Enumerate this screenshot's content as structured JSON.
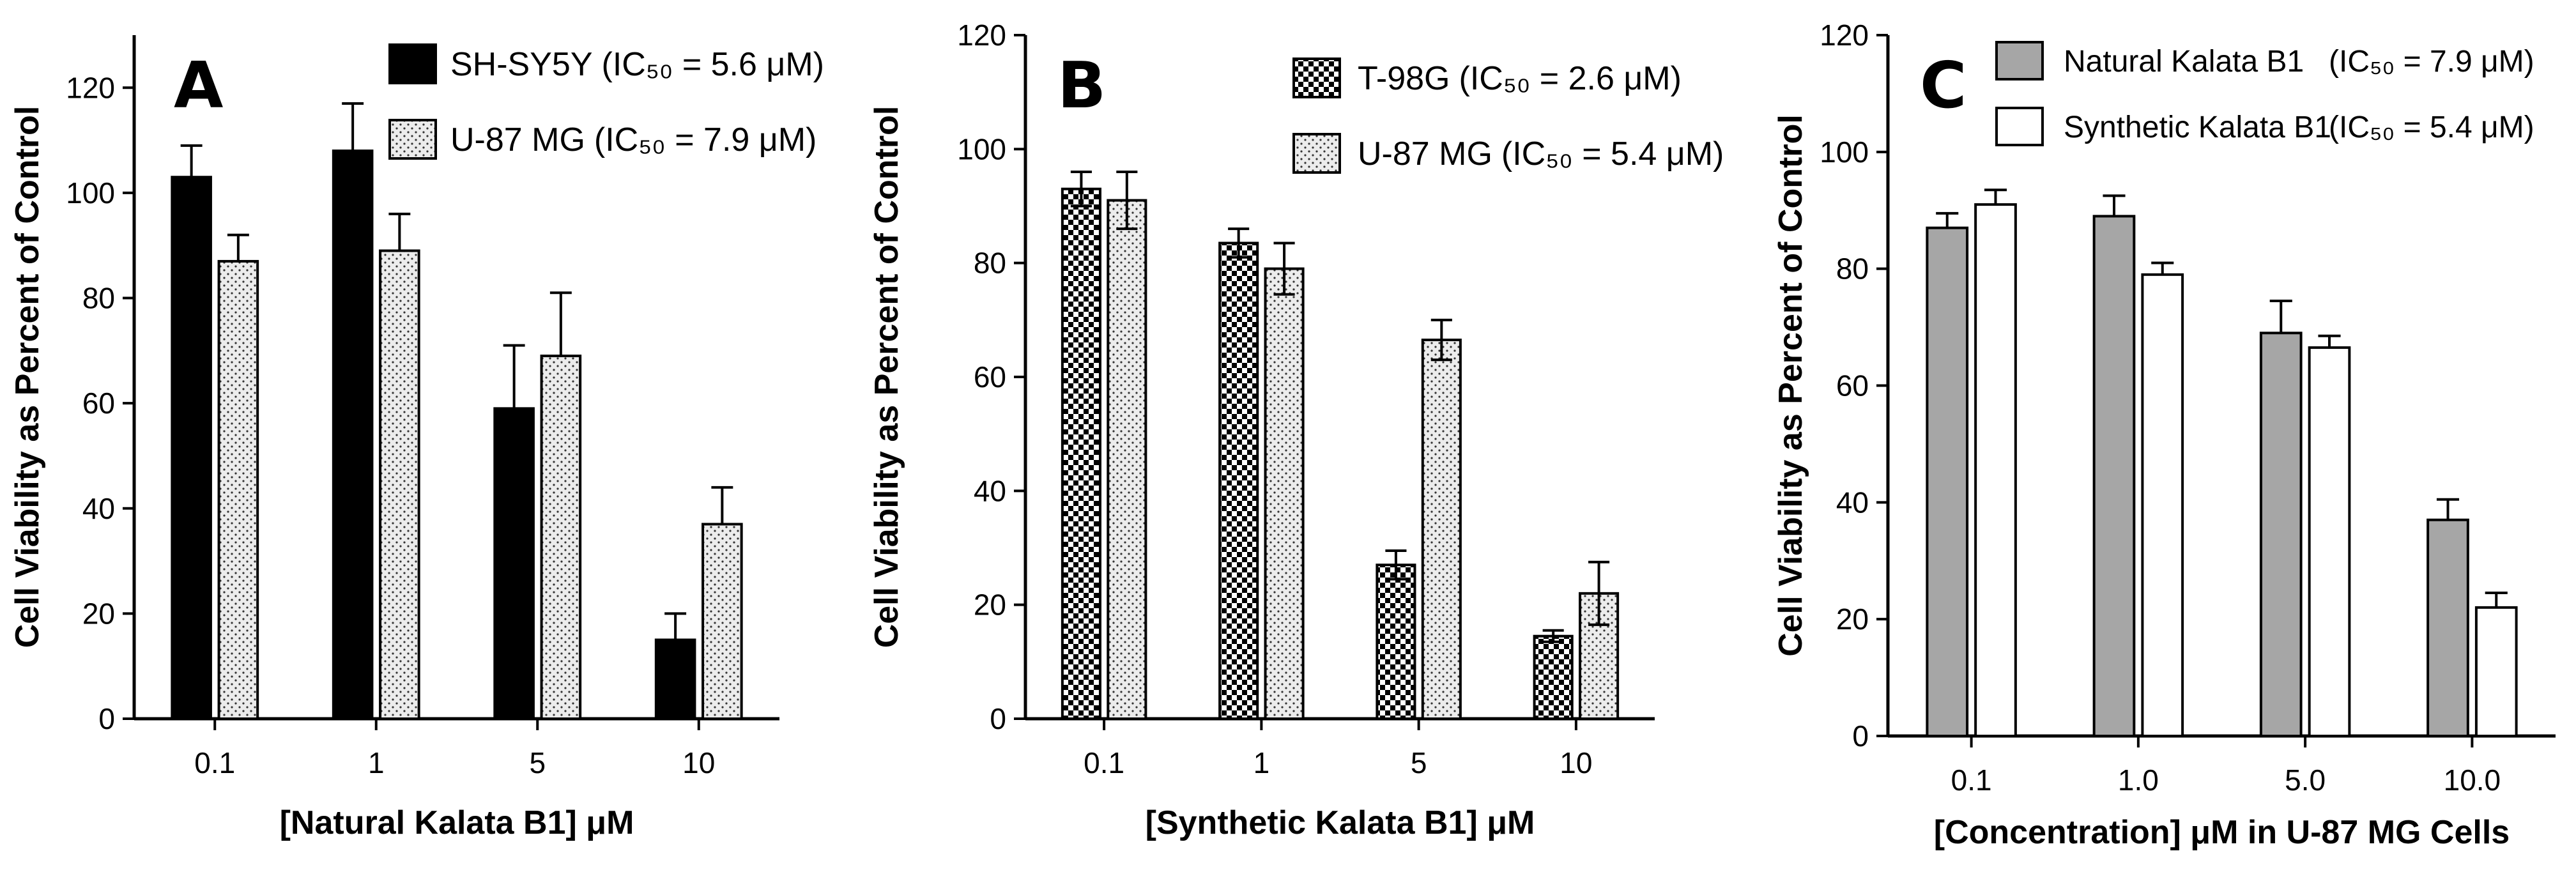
{
  "colors": {
    "black_bar": "#000000",
    "dotted_bar_bg": "#ececec",
    "gray_bar": "#a6a6a6",
    "white_bar": "#ffffff",
    "axis": "#000000"
  },
  "chart_data": [
    {
      "type": "bar",
      "panel_letter": "A",
      "title": "",
      "xlabel": "[Natural Kalata B1] μM",
      "ylabel": "Cell Viability as Percent of Control",
      "categories": [
        "0.1",
        "1",
        "5",
        "10"
      ],
      "ylim": [
        0,
        130
      ],
      "yticks": [
        "0",
        "20",
        "40",
        "60",
        "80",
        "100",
        "120"
      ],
      "legend_position": "top-right",
      "series": [
        {
          "name": "SH-SY5Y",
          "ic50_text": "(IC₅₀ = 5.6 μM)",
          "pattern": "solid-black",
          "values": [
            103,
            108,
            59,
            15
          ],
          "errors": [
            6,
            9,
            12,
            5
          ]
        },
        {
          "name": "U-87 MG",
          "ic50_text": "(IC₅₀ = 7.9 μM)",
          "pattern": "dotted",
          "values": [
            87,
            89,
            69,
            37
          ],
          "errors": [
            5,
            7,
            12,
            7
          ]
        }
      ]
    },
    {
      "type": "bar",
      "panel_letter": "B",
      "title": "",
      "xlabel": "[Synthetic Kalata B1] μM",
      "ylabel": "Cell Viability as Percent of Control",
      "categories": [
        "0.1",
        "1",
        "5",
        "10"
      ],
      "ylim": [
        0,
        120
      ],
      "yticks": [
        "0",
        "20",
        "40",
        "60",
        "80",
        "100",
        "120"
      ],
      "legend_position": "top-right",
      "series": [
        {
          "name": "T-98G",
          "ic50_text": "(IC₅₀ = 2.6 μM)",
          "pattern": "checkered",
          "values": [
            93,
            83.5,
            27,
            14.5
          ],
          "errors": [
            3,
            2.5,
            2.5,
            1
          ],
          "error_both_sides": true
        },
        {
          "name": "U-87 MG",
          "ic50_text": "(IC₅₀ = 5.4 μM)",
          "pattern": "dotted",
          "values": [
            91,
            79,
            66.5,
            22
          ],
          "errors": [
            5,
            4.5,
            3.5,
            5.5
          ],
          "error_both_sides": true
        }
      ]
    },
    {
      "type": "bar",
      "panel_letter": "C",
      "title": "",
      "xlabel": "[Concentration] μM in U-87 MG Cells",
      "ylabel": "Cell Viability as Percent of Control",
      "categories": [
        "0.1",
        "1.0",
        "5.0",
        "10.0"
      ],
      "ylim": [
        0,
        120
      ],
      "yticks": [
        "0",
        "20",
        "40",
        "60",
        "80",
        "100",
        "120"
      ],
      "legend_position": "top-right",
      "series": [
        {
          "name": "Natural Kalata B1",
          "ic50_text": "(IC₅₀ = 7.9 μM)",
          "pattern": "gray",
          "values": [
            87,
            89,
            69,
            37
          ],
          "errors": [
            2.5,
            3.5,
            5.5,
            3.5
          ]
        },
        {
          "name": "Synthetic Kalata B1",
          "ic50_text": "(IC₅₀ = 5.4 μM)",
          "pattern": "white",
          "values": [
            91,
            79,
            66.5,
            22
          ],
          "errors": [
            2.5,
            2,
            2,
            2.5
          ]
        }
      ]
    }
  ]
}
